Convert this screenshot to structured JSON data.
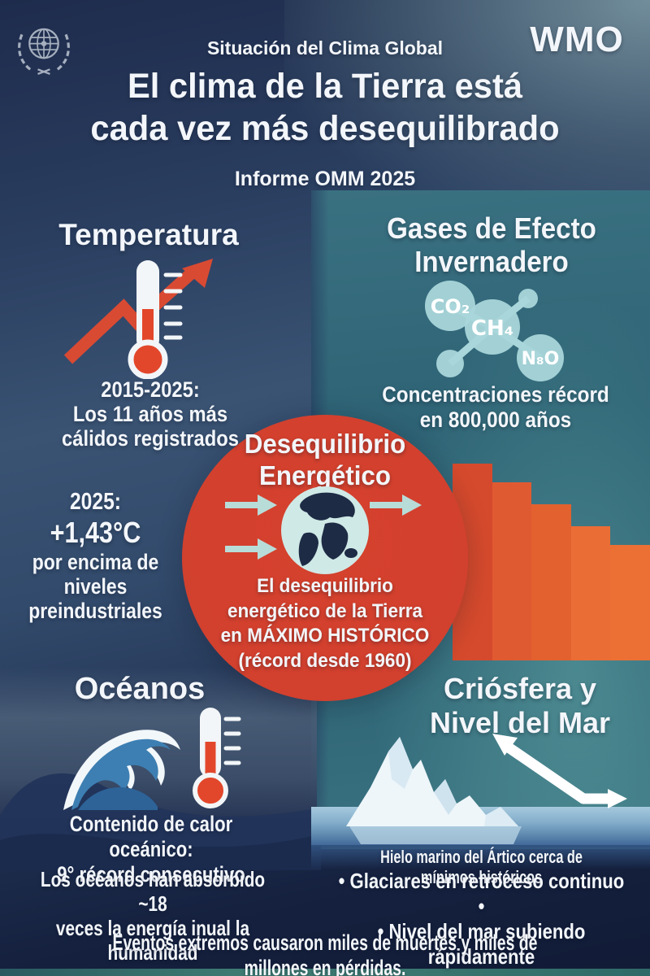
{
  "header": {
    "org": "WMO",
    "kicker": "Situación del Clima Global",
    "title_line1": "El clima de la Tierra está",
    "title_line2": "cada vez más desequilibrado",
    "report": "Informe OMM 2025"
  },
  "temperature": {
    "heading": "Temperatura",
    "fact1_line1": "2015-2025:",
    "fact1_line2": "Los 11 años más",
    "fact1_line3": "cálidos registrados",
    "fact2_line1": "2025:",
    "fact2_line2": "+1,43°C",
    "fact2_line3": "por encima de",
    "fact2_line4": "niveles",
    "fact2_line5": "preindustriales"
  },
  "greenhouse": {
    "heading_line1": "Gases de Efecto",
    "heading_line2": "Invernadero",
    "molecules": {
      "co2": "CO₂",
      "ch4": "CH₄",
      "n2o": "N₈O"
    },
    "caption_line1": "Concentraciones récord",
    "caption_line2": "en 800,000 años"
  },
  "energy": {
    "heading_line1": "Desequilibrio",
    "heading_line2": "Energético",
    "body_line1": "El desequilibrio",
    "body_line2": "energético de la Tierra",
    "body_line3": "en MÁXIMO HISTÓRICO",
    "body_line4": "(récord desde 1960)"
  },
  "oceans": {
    "heading": "Océanos",
    "fact1_line1": "Contenido de calor oceánico:",
    "fact1_line2": "9° récord consecutivo",
    "fact2_line1": "Los océanos han absorbido ~18",
    "fact2_line2": "veces la energía inual la humanidad"
  },
  "cryosphere": {
    "heading_line1": "Criósfera y",
    "heading_line2": "Nivel del Mar",
    "fact1": "Hielo marino del Ártico cerca de mínimos históricos",
    "bullet1": "• Glaciares en retroceso continuo •",
    "bullet2": "• Nivel del mar subiendo rápidamente"
  },
  "footer": {
    "banner": "Eventos extremos causaron miles de muertes y miles de millones en pérdidas."
  },
  "icons": {
    "logo": "un-emblem",
    "temperature": "thermometer-with-rising-arrow",
    "greenhouse": "molecule-co2-ch4-n2o",
    "energy": "earth-globe-with-teal-arrows",
    "oceans": "ocean-wave-and-thermometer",
    "cryosphere": "iceberg-with-sea-level-arrow"
  },
  "decoration": {
    "background": {
      "navy_top": "#22335a",
      "slate_mid": "#3a5373",
      "teal_panel": "#2e6375",
      "navy_bottom": "#111b36",
      "bottom_strip_teal": "#3f7e74"
    },
    "accent_red_circle": "#d2402e",
    "thermometer_red": "#e2472b",
    "arrow_red": "#d94a33",
    "energy_arrow_teal": "#b8dcd8",
    "molecule_fill": "#a9d6da",
    "wave_blue": "#3d7fb2",
    "iceberg_white": "#eef6fa",
    "water_band_blue": "#84aecb",
    "bars": {
      "values": [
        242,
        219,
        192,
        165,
        142
      ],
      "colors": [
        "#d54a2d",
        "#e05a31",
        "#e2612f",
        "#ea6d36",
        "#ec7033"
      ]
    }
  }
}
